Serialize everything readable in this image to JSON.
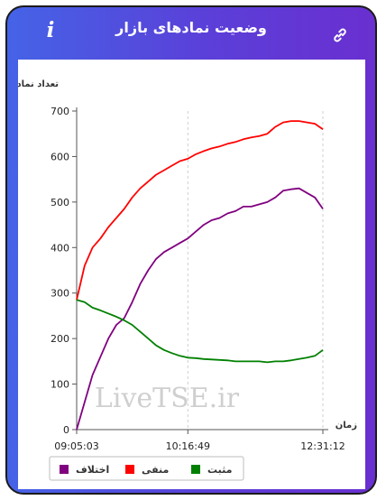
{
  "header": {
    "title": "وضعیت نمادهای بازار",
    "info_icon": "info-icon",
    "link_icon": "link-icon"
  },
  "watermark": "LiveTSE.ir",
  "chart_data": {
    "type": "line",
    "ylabel": "تعداد نماد",
    "xlabel": "زمان",
    "ylim": [
      0,
      700
    ],
    "yticks": [
      0,
      100,
      200,
      300,
      400,
      500,
      600,
      700
    ],
    "xticks": [
      "09:05:03",
      "10:16:49",
      "12:31:12"
    ],
    "x": [
      "09:05:03",
      "09:10",
      "09:15",
      "09:20",
      "09:25",
      "09:30",
      "09:35",
      "09:40",
      "09:45",
      "09:50",
      "09:55",
      "10:00",
      "10:05",
      "10:10",
      "10:16:49",
      "10:25",
      "10:35",
      "10:45",
      "10:55",
      "11:05",
      "11:15",
      "11:25",
      "11:35",
      "11:45",
      "11:55",
      "12:05",
      "12:10",
      "12:15",
      "12:20",
      "12:25",
      "12:29",
      "12:31:12"
    ],
    "series": [
      {
        "name": "اختلاف",
        "color": "#800080",
        "values": [
          0,
          60,
          120,
          160,
          200,
          230,
          245,
          280,
          320,
          350,
          375,
          390,
          400,
          410,
          420,
          435,
          450,
          460,
          465,
          475,
          480,
          490,
          490,
          495,
          500,
          510,
          525,
          528,
          530,
          520,
          510,
          485
        ]
      },
      {
        "name": "منفی",
        "color": "#ff0000",
        "values": [
          285,
          360,
          400,
          420,
          445,
          465,
          485,
          510,
          530,
          545,
          560,
          570,
          580,
          590,
          595,
          605,
          612,
          618,
          622,
          628,
          632,
          638,
          642,
          645,
          650,
          665,
          675,
          678,
          678,
          675,
          672,
          660
        ]
      },
      {
        "name": "مثبت",
        "color": "#008000",
        "values": [
          285,
          280,
          268,
          262,
          255,
          248,
          240,
          230,
          215,
          200,
          185,
          175,
          168,
          162,
          158,
          157,
          155,
          154,
          153,
          152,
          150,
          150,
          150,
          150,
          148,
          150,
          150,
          152,
          155,
          158,
          162,
          175
        ]
      }
    ],
    "legend_position": "bottom"
  }
}
